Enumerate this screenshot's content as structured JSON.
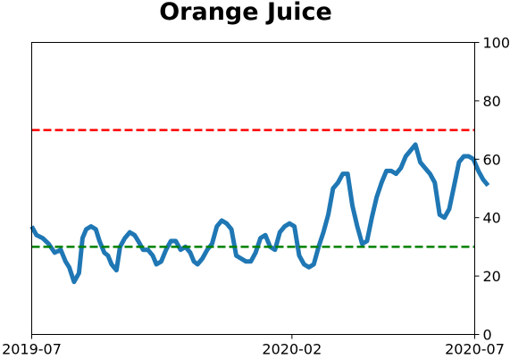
{
  "chart_data": {
    "type": "line",
    "title": "Orange Juice",
    "xlabel": "",
    "ylabel": "",
    "x_range": [
      "2019-07",
      "2020-07"
    ],
    "x_ticks": [
      "2019-07",
      "2020-02",
      "2020-07"
    ],
    "ylim": [
      0,
      100
    ],
    "y_ticks": [
      "0",
      "20",
      "40",
      "60",
      "80",
      "100"
    ],
    "y_axis_side": "right",
    "grid": false,
    "legend": "none",
    "series": [
      {
        "color": "#1f77b4",
        "x": [
          "2019-07-01",
          "2019-07-05",
          "2019-07-10",
          "2019-07-15",
          "2019-07-20",
          "2019-07-25",
          "2019-07-29",
          "2019-08-01",
          "2019-08-05",
          "2019-08-09",
          "2019-08-12",
          "2019-08-15",
          "2019-08-19",
          "2019-08-23",
          "2019-08-26",
          "2019-08-30",
          "2019-09-02",
          "2019-09-05",
          "2019-09-09",
          "2019-09-12",
          "2019-09-16",
          "2019-09-20",
          "2019-09-24",
          "2019-09-27",
          "2019-10-01",
          "2019-10-05",
          "2019-10-09",
          "2019-10-12",
          "2019-10-16",
          "2019-10-20",
          "2019-10-24",
          "2019-10-28",
          "2019-11-01",
          "2019-11-05",
          "2019-11-09",
          "2019-11-12",
          "2019-11-15",
          "2019-11-19",
          "2019-11-23",
          "2019-11-27",
          "2019-12-01",
          "2019-12-05",
          "2019-12-09",
          "2019-12-13",
          "2019-12-17",
          "2019-12-21",
          "2019-12-25",
          "2019-12-29",
          "2020-01-02",
          "2020-01-06",
          "2020-01-10",
          "2020-01-14",
          "2020-01-18",
          "2020-01-22",
          "2020-01-26",
          "2020-01-30",
          "2020-02-03",
          "2020-02-07",
          "2020-02-11",
          "2020-02-15",
          "2020-02-19",
          "2020-02-23",
          "2020-02-27",
          "2020-03-02",
          "2020-03-06",
          "2020-03-10",
          "2020-03-14",
          "2020-03-18",
          "2020-03-22",
          "2020-03-26",
          "2020-03-30",
          "2020-04-03",
          "2020-04-07",
          "2020-04-11",
          "2020-04-15",
          "2020-04-19",
          "2020-04-23",
          "2020-04-27",
          "2020-05-01",
          "2020-05-05",
          "2020-05-09",
          "2020-05-13",
          "2020-05-17",
          "2020-05-21",
          "2020-05-25",
          "2020-05-29",
          "2020-06-02",
          "2020-06-06",
          "2020-06-10",
          "2020-06-14",
          "2020-06-18",
          "2020-06-22",
          "2020-06-26",
          "2020-06-30",
          "2020-07-04",
          "2020-07-08",
          "2020-07-12",
          "2020-07-16",
          "2020-07-20",
          "2020-07-24",
          "2020-07-28"
        ],
        "y": [
          37,
          34,
          33,
          31,
          28,
          29,
          25,
          23,
          18,
          21,
          33,
          36,
          37,
          36,
          32,
          28,
          27,
          24,
          22,
          30,
          33,
          35,
          34,
          32,
          29,
          29,
          27,
          24,
          25,
          29,
          32,
          32,
          29,
          30,
          28,
          25,
          24,
          26,
          29,
          31,
          37,
          39,
          38,
          36,
          27,
          26,
          25,
          25,
          28,
          33,
          34,
          30,
          29,
          35,
          37,
          38,
          37,
          27,
          24,
          23,
          24,
          30,
          35,
          41,
          50,
          52,
          55,
          55,
          44,
          37,
          31,
          32,
          40,
          47,
          52,
          56,
          56,
          55,
          57,
          61,
          63,
          65,
          59,
          57,
          55,
          52,
          41,
          40,
          43,
          51,
          59,
          61,
          61,
          60,
          56,
          53,
          51,
          null,
          null,
          null,
          null
        ]
      }
    ],
    "reference_lines": [
      {
        "y": 70,
        "color": "#ff0000",
        "style": "dashed"
      },
      {
        "y": 30,
        "color": "#008000",
        "style": "dashed"
      }
    ]
  }
}
